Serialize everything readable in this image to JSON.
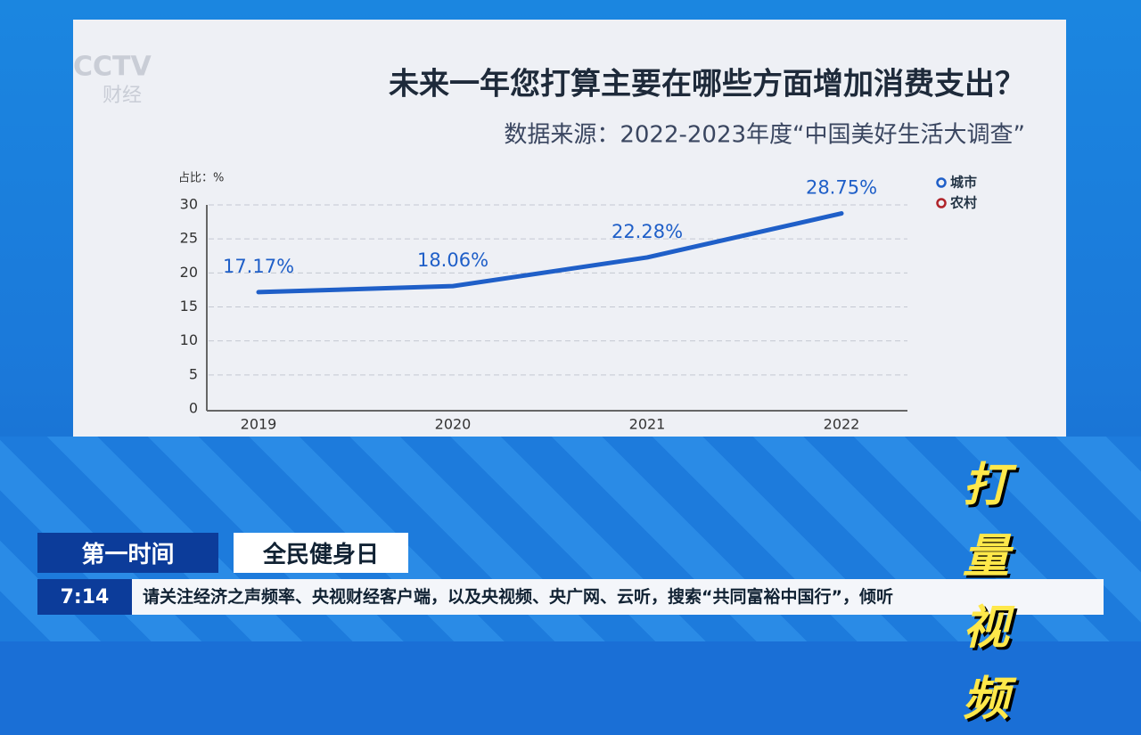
{
  "chart_data": {
    "type": "line",
    "title": "未来一年您打算主要在哪些方面增加消费支出？",
    "subtitle": "数据来源：2022-2023年度“中国美好生活大调查”",
    "y_label": "占比：%",
    "categories": [
      "2019",
      "2020",
      "2021",
      "2022"
    ],
    "series": [
      {
        "name": "城市",
        "color": "#1f5fc8",
        "values": [
          17.17,
          18.06,
          22.28,
          28.75
        ],
        "value_labels": [
          "17.17%",
          "18.06%",
          "22.28%",
          "28.75%"
        ]
      },
      {
        "name": "农村",
        "color": "#b0242a",
        "values": [
          null,
          null,
          null,
          null
        ]
      }
    ],
    "ylim": [
      0,
      30
    ],
    "yticks": [
      0,
      5,
      10,
      15,
      20,
      25,
      30
    ],
    "grid": true
  },
  "broadcast": {
    "logo": "CCTV",
    "logo_sub": "财经",
    "program": "第一时间",
    "topic": "全民健身日",
    "time": "7:14",
    "ticker": "请关注经济之声频率、央视财经客户端，以及央视频、央广网、云听，搜索“共同富裕中国行”，倾听",
    "badge": "打量视频"
  }
}
